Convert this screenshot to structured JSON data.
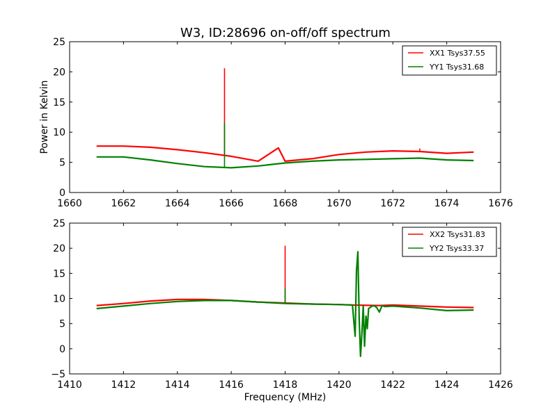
{
  "title": "W3, ID:28696 on-off/off spectrum",
  "colors": {
    "xx": "#ff0000",
    "yy": "#008000"
  },
  "chart_data": [
    {
      "type": "line",
      "ylabel": "Power in Kelvin",
      "xlabel": "",
      "xlim": [
        1660,
        1676
      ],
      "ylim": [
        0,
        25
      ],
      "xticks": [
        1660,
        1662,
        1664,
        1666,
        1668,
        1670,
        1672,
        1674,
        1676
      ],
      "xtick_labels": [
        "1660",
        "1662",
        "1664",
        "1666",
        "1668",
        "1670",
        "1672",
        "1674",
        "1676"
      ],
      "yticks": [
        0,
        5,
        10,
        15,
        20,
        25
      ],
      "ytick_labels": [
        "0",
        "5",
        "10",
        "15",
        "20",
        "25"
      ],
      "legend_position": "top-right",
      "series": [
        {
          "name": "XX1 Tsys37.55",
          "color": "#ff0000",
          "x": [
            1661,
            1662,
            1663,
            1664,
            1665,
            1666,
            1667,
            1667.75,
            1668,
            1669,
            1670,
            1671,
            1672,
            1673,
            1674,
            1675
          ],
          "y": [
            7.7,
            7.7,
            7.5,
            7.1,
            6.6,
            6.0,
            5.2,
            7.4,
            5.2,
            5.6,
            6.3,
            6.7,
            6.9,
            6.8,
            6.5,
            6.7
          ],
          "spikes": [
            {
              "x": 1665.75,
              "y": 20.6
            },
            {
              "x": 1667.75,
              "y": 7.4
            },
            {
              "x": 1673.0,
              "y": 7.3
            }
          ]
        },
        {
          "name": "YY1 Tsys31.68",
          "color": "#008000",
          "x": [
            1661,
            1662,
            1663,
            1664,
            1665,
            1666,
            1667,
            1668,
            1669,
            1670,
            1671,
            1672,
            1673,
            1674,
            1675
          ],
          "y": [
            5.9,
            5.9,
            5.4,
            4.8,
            4.3,
            4.1,
            4.4,
            4.9,
            5.2,
            5.4,
            5.5,
            5.6,
            5.7,
            5.4,
            5.3
          ],
          "spikes": [
            {
              "x": 1665.75,
              "y": 11.5
            }
          ]
        }
      ]
    },
    {
      "type": "line",
      "ylabel": "",
      "xlabel": "Frequency (MHz)",
      "xlim": [
        1410,
        1426
      ],
      "ylim": [
        -5,
        25
      ],
      "xticks": [
        1410,
        1412,
        1414,
        1416,
        1418,
        1420,
        1422,
        1424,
        1426
      ],
      "xtick_labels": [
        "1410",
        "1412",
        "1414",
        "1416",
        "1418",
        "1420",
        "1422",
        "1424",
        "1426"
      ],
      "yticks": [
        -5,
        0,
        5,
        10,
        15,
        20,
        25
      ],
      "ytick_labels": [
        "−5",
        "0",
        "5",
        "10",
        "15",
        "20",
        "25"
      ],
      "legend_position": "top-right",
      "series": [
        {
          "name": "XX2 Tsys31.83",
          "color": "#ff0000",
          "x": [
            1411,
            1412,
            1413,
            1414,
            1415,
            1416,
            1417,
            1418,
            1419,
            1420,
            1420.5,
            1421.5,
            1422,
            1423,
            1424,
            1425
          ],
          "y": [
            8.6,
            9.0,
            9.5,
            9.8,
            9.8,
            9.6,
            9.3,
            9.1,
            8.9,
            8.8,
            8.7,
            8.6,
            8.7,
            8.5,
            8.3,
            8.2
          ],
          "spikes": [
            {
              "x": 1418.0,
              "y": 20.5
            }
          ]
        },
        {
          "name": "YY2 Tsys33.37",
          "color": "#008000",
          "x": [
            1411,
            1412,
            1413,
            1414,
            1415,
            1416,
            1417,
            1418,
            1419,
            1420,
            1420.5,
            1420.55,
            1420.6,
            1420.65,
            1420.7,
            1420.75,
            1420.8,
            1420.85,
            1420.9,
            1420.95,
            1421.0,
            1421.05,
            1421.1,
            1421.2,
            1421.3,
            1421.4,
            1421.5,
            1421.6,
            1421.7,
            1422,
            1423,
            1424,
            1425
          ],
          "y": [
            8.0,
            8.5,
            9.0,
            9.4,
            9.6,
            9.6,
            9.3,
            9.0,
            8.9,
            8.8,
            8.7,
            5.5,
            2.5,
            15.5,
            19.3,
            6.0,
            -1.5,
            3.0,
            8.5,
            0.5,
            6.5,
            4.0,
            8.0,
            8.4,
            8.6,
            8.2,
            7.3,
            8.6,
            8.4,
            8.5,
            8.1,
            7.6,
            7.7
          ],
          "spikes": [
            {
              "x": 1418.0,
              "y": 12.0
            }
          ]
        }
      ]
    }
  ]
}
